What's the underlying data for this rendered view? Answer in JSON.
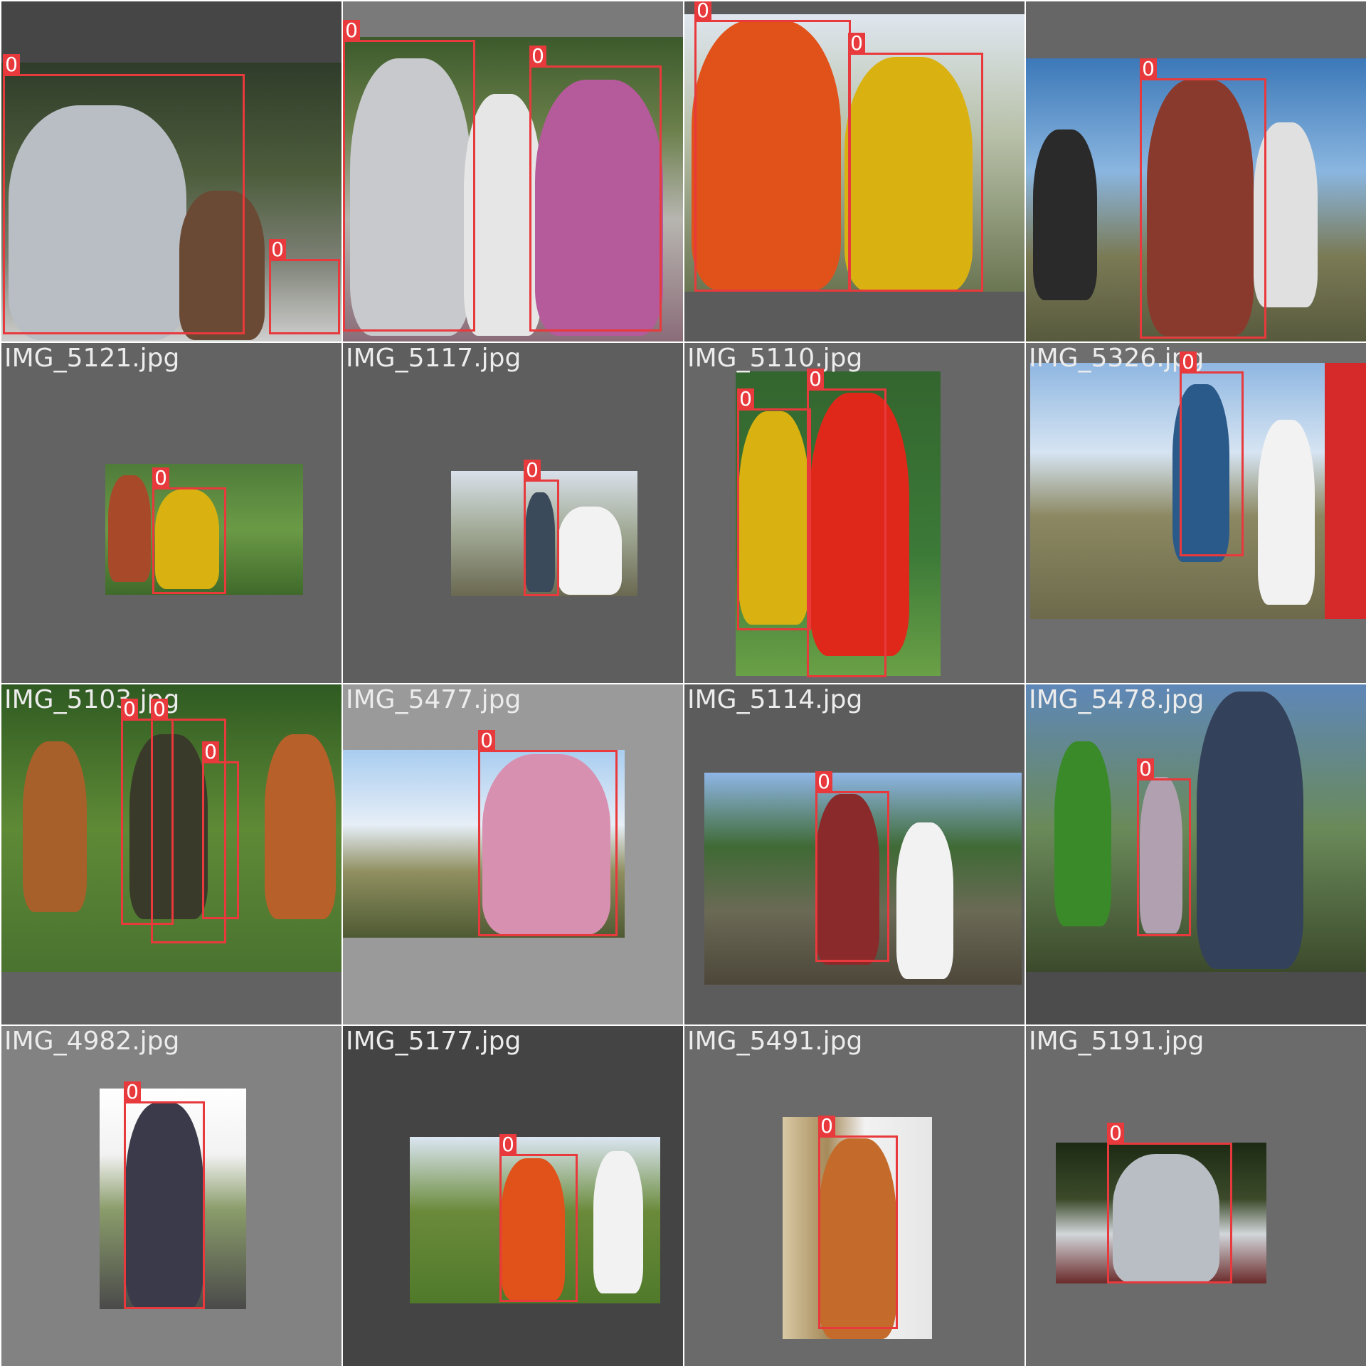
{
  "mosaic": {
    "box_color": "#e8393c",
    "cells": [
      {
        "caption": "",
        "bg": "#464646",
        "photo_bg": "linear-gradient(180deg,#2f3c2a 0%,#4d5d3c 40%,#7b7f73 70%,#cfcfcf 100%)",
        "boxes": [
          {
            "label": "0"
          },
          {
            "label": "0"
          }
        ]
      },
      {
        "caption": "",
        "bg": "#7a7a7a",
        "photo_bg": "linear-gradient(180deg,#3c5a2c 0%,#6a7f4a 30%,#b7b5b0 60%,#8a6c78 100%)",
        "boxes": [
          {
            "label": "0"
          },
          {
            "label": "0"
          }
        ]
      },
      {
        "caption": "",
        "bg": "#5b5b5b",
        "photo_bg": "linear-gradient(180deg,#dfe6ef 0%,#b6bfa6 45%,#6a7552 100%)",
        "boxes": [
          {
            "label": "0"
          },
          {
            "label": "0"
          }
        ]
      },
      {
        "caption": "",
        "bg": "#666666",
        "photo_bg": "linear-gradient(180deg,#3c78b8 0%,#8ab6e0 40%,#7a7a55 70%,#585a3e 100%)",
        "boxes": [
          {
            "label": "0"
          }
        ]
      },
      {
        "caption": "IMG_5121.jpg",
        "bg": "#636363",
        "photo_bg": "linear-gradient(180deg,#4f7c3a 0%,#6b9a46 50%,#3f6a2b 100%)",
        "boxes": [
          {
            "label": "0"
          }
        ]
      },
      {
        "caption": "IMG_5117.jpg",
        "bg": "#5e5e5e",
        "photo_bg": "linear-gradient(180deg,#d9e0ea 0%,#a4ad9a 45%,#6a6850 100%)",
        "boxes": [
          {
            "label": "0"
          }
        ]
      },
      {
        "caption": "IMG_5110.jpg",
        "bg": "#676767",
        "photo_bg": "linear-gradient(180deg,#33652e 0%,#3c7a38 60%,#6aa046 100%)",
        "boxes": [
          {
            "label": "0"
          },
          {
            "label": "0"
          }
        ]
      },
      {
        "caption": "IMG_5326.jpg",
        "bg": "#6e6e6e",
        "photo_bg": "linear-gradient(180deg,#8fb7e2 0%,#d6e4f2 35%,#8c8862 60%,#6d6a4b 100%)",
        "boxes": [
          {
            "label": "0"
          }
        ]
      },
      {
        "caption": "IMG_5103.jpg",
        "bg": "#626262",
        "photo_bg": "linear-gradient(180deg,#2f5a22 0%,#5e8a36 50%,#4a7330 100%)",
        "boxes": [
          {
            "label": "0"
          },
          {
            "label": "0"
          },
          {
            "label": "0"
          }
        ]
      },
      {
        "caption": "IMG_5477.jpg",
        "bg": "#9a9a9a",
        "photo_bg": "linear-gradient(180deg,#a9cdf0 0%,#e6eef7 40%,#8f8f60 65%,#4f5a33 100%)",
        "boxes": [
          {
            "label": "0"
          }
        ]
      },
      {
        "caption": "IMG_5114.jpg",
        "bg": "#5c5c5c",
        "photo_bg": "linear-gradient(180deg,#8fb6e6 0%,#3f6a35 35%,#6a6a55 65%,#4d473a 100%)",
        "boxes": [
          {
            "label": "0"
          }
        ]
      },
      {
        "caption": "IMG_5478.jpg",
        "bg": "#4c4c4c",
        "photo_bg": "linear-gradient(180deg,#5e87b8 0%,#6a8a5a 50%,#3c4a2c 100%)",
        "boxes": [
          {
            "label": "0"
          }
        ]
      },
      {
        "caption": "IMG_4982.jpg",
        "bg": "#828282",
        "photo_bg": "linear-gradient(180deg,#ffffff 0%,#f2f2f2 30%,#8a9c6a 55%,#4a4a4a 100%)",
        "boxes": [
          {
            "label": "0"
          }
        ]
      },
      {
        "caption": "IMG_5177.jpg",
        "bg": "#444444",
        "photo_bg": "linear-gradient(180deg,#dbe6f2 0%,#6a8a3a 45%,#4f7a2a 100%)",
        "boxes": [
          {
            "label": "0"
          }
        ]
      },
      {
        "caption": "IMG_5491.jpg",
        "bg": "#6a6a6a",
        "photo_bg": "linear-gradient(90deg,#d9c9a5 0%,#a68a5a 30%,#f2f2f2 55%,#e6e6e6 100%)",
        "boxes": [
          {
            "label": "0"
          }
        ]
      },
      {
        "caption": "IMG_5191.jpg",
        "bg": "#6b6b6b",
        "photo_bg": "linear-gradient(180deg,#1c2a14 0%,#3c4a2a 40%,#d2d6da 65%,#6a2a2a 100%)",
        "boxes": [
          {
            "label": "0"
          }
        ]
      }
    ]
  }
}
